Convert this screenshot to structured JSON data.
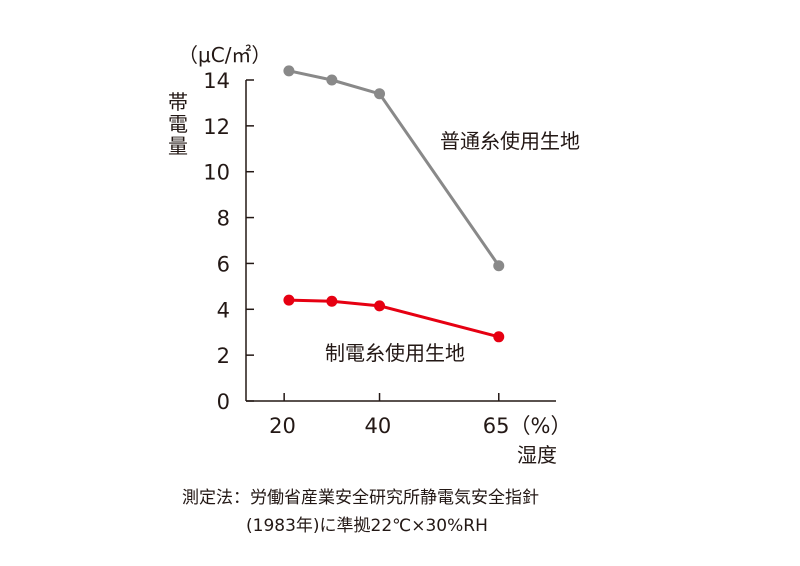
{
  "chart_data": {
    "type": "line",
    "unit_label": "（μC/㎡）",
    "ylabel_chars": [
      "帯",
      "電",
      "量"
    ],
    "xlabel": "湿度",
    "ylim": [
      0,
      14
    ],
    "y_ticks": [
      0,
      2,
      4,
      6,
      8,
      10,
      12,
      14
    ],
    "x_ticks": [
      {
        "value": 20,
        "label": "20"
      },
      {
        "value": 40,
        "label": "40"
      },
      {
        "value": 65,
        "label": "65（%）"
      }
    ],
    "xlim": [
      12,
      77
    ],
    "grid": false,
    "series": [
      {
        "name": "普通糸使用生地",
        "color": "#898989",
        "x": [
          21,
          30,
          40,
          65
        ],
        "y": [
          14.4,
          14.0,
          13.4,
          5.9
        ]
      },
      {
        "name": "制電糸使用生地",
        "color": "#e60012",
        "x": [
          21,
          30,
          40,
          65
        ],
        "y": [
          4.4,
          4.35,
          4.15,
          2.8
        ]
      }
    ]
  },
  "footnote": {
    "line1": "測定法：労働省産業安全研究所静電気安全指針",
    "line2": "(1983年)に準拠22℃×30%RH"
  }
}
